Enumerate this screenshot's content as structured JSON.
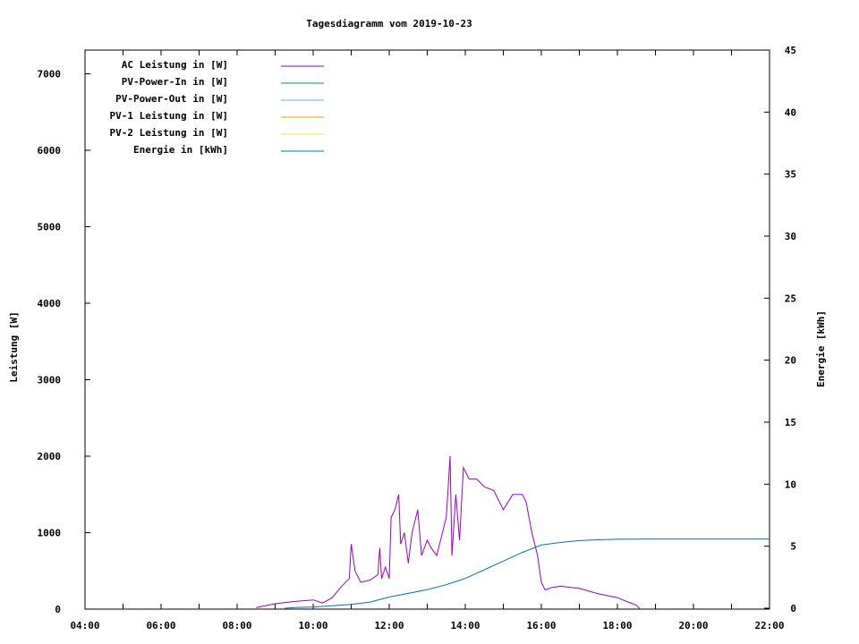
{
  "chart_data": {
    "type": "line",
    "title": "Tagesdiagramm vom 2019-10-23",
    "xlabel": "",
    "ylabel": "Leistung [W]",
    "y2label": "Energie [kWh]",
    "xlim": [
      "04:00",
      "22:00"
    ],
    "ylim": [
      0,
      7300
    ],
    "y2lim": [
      0,
      45
    ],
    "x_ticks": [
      "04:00",
      "06:00",
      "08:00",
      "10:00",
      "12:00",
      "14:00",
      "16:00",
      "18:00",
      "20:00",
      "22:00"
    ],
    "y_ticks": [
      "0",
      "1000",
      "2000",
      "3000",
      "4000",
      "5000",
      "6000",
      "7000"
    ],
    "y2_ticks": [
      "0",
      "5",
      "10",
      "15",
      "20",
      "25",
      "30",
      "35",
      "40",
      "45"
    ],
    "grid": false,
    "legend_position": "top-left",
    "series": [
      {
        "name": "AC Leistung in [W]",
        "color": "#9400d3",
        "axis": "left",
        "x": [
          "08:30",
          "09:00",
          "09:30",
          "10:00",
          "10:15",
          "10:30",
          "10:45",
          "10:57",
          "11:00",
          "11:06",
          "11:15",
          "11:30",
          "11:42",
          "11:45",
          "11:48",
          "11:54",
          "12:00",
          "12:03",
          "12:09",
          "12:15",
          "12:18",
          "12:24",
          "12:30",
          "12:36",
          "12:45",
          "12:51",
          "13:00",
          "13:06",
          "13:15",
          "13:30",
          "13:36",
          "13:39",
          "13:45",
          "13:51",
          "13:57",
          "14:06",
          "14:18",
          "14:30",
          "14:45",
          "15:00",
          "15:15",
          "15:30",
          "15:36",
          "15:45",
          "15:54",
          "16:00",
          "16:06",
          "16:15",
          "16:30",
          "17:00",
          "17:30",
          "18:00",
          "18:15",
          "18:30",
          "18:36"
        ],
        "y": [
          20,
          70,
          100,
          120,
          80,
          150,
          300,
          400,
          850,
          500,
          350,
          380,
          450,
          800,
          400,
          550,
          400,
          1200,
          1300,
          1500,
          850,
          1000,
          600,
          1000,
          1300,
          700,
          900,
          800,
          700,
          1200,
          2000,
          700,
          1500,
          900,
          1850,
          1700,
          1700,
          1600,
          1550,
          1300,
          1500,
          1500,
          1400,
          1000,
          700,
          350,
          250,
          280,
          300,
          270,
          200,
          150,
          100,
          50,
          0
        ]
      },
      {
        "name": "PV-Power-In in [W]",
        "color": "#009e73",
        "axis": "left",
        "x": [],
        "y": []
      },
      {
        "name": "PV-Power-Out in [W]",
        "color": "#56b4e9",
        "axis": "left",
        "x": [],
        "y": []
      },
      {
        "name": "PV-1 Leistung in [W]",
        "color": "#e69f00",
        "axis": "left",
        "x": [],
        "y": []
      },
      {
        "name": "PV-2 Leistung in [W]",
        "color": "#f0e442",
        "axis": "left",
        "x": [],
        "y": []
      },
      {
        "name": "Energie in [kWh]",
        "color": "#0072b2",
        "axis": "right",
        "x": [
          "09:15",
          "09:30",
          "10:00",
          "11:00",
          "11:30",
          "12:00",
          "12:30",
          "13:00",
          "13:30",
          "14:00",
          "14:30",
          "15:00",
          "15:30",
          "16:00",
          "16:30",
          "17:00",
          "17:30",
          "18:00",
          "19:00",
          "22:00"
        ],
        "y": [
          0,
          0.05,
          0.1,
          0.3,
          0.5,
          0.9,
          1.2,
          1.5,
          1.9,
          2.4,
          3.1,
          3.8,
          4.5,
          5.1,
          5.3,
          5.45,
          5.52,
          5.56,
          5.58,
          5.58
        ]
      }
    ]
  }
}
